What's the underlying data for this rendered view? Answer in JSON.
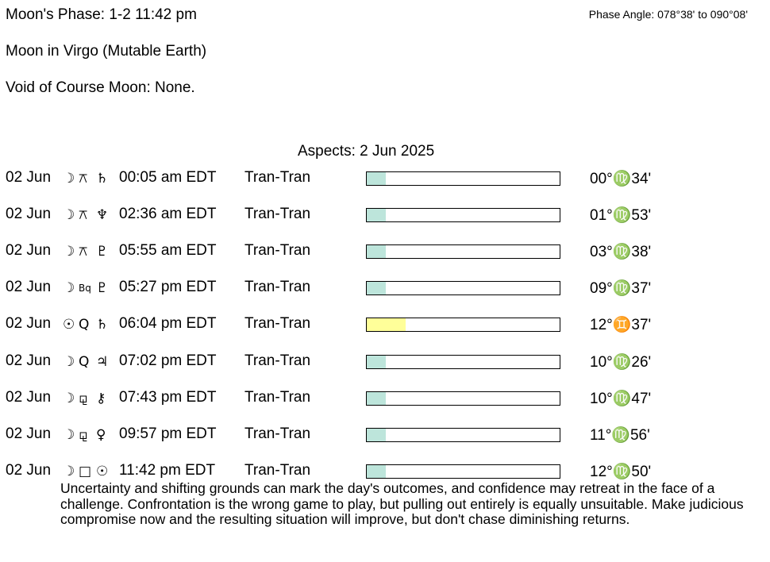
{
  "header": {
    "moon_phase": "Moon's Phase:  1-2 11:42 pm",
    "phase_angle": "Phase Angle:  078°38' to 090°08'",
    "moon_sign": "Moon in Virgo   (Mutable Earth)",
    "void_of_course": "Void of Course Moon: None."
  },
  "aspects_title": "Aspects: 2 Jun 2025",
  "bar_colors": {
    "teal": "#bde5db",
    "yellow": "#ffff99"
  },
  "aspects": [
    {
      "date": "02 Jun",
      "p1": "☽",
      "aspect": "⚻",
      "p2": "♄",
      "time": "00:05 am EDT",
      "type": "Tran-Tran",
      "strength": 0.1,
      "color": "teal",
      "position": "00°♍34'"
    },
    {
      "date": "02 Jun",
      "p1": "☽",
      "aspect": "⚻",
      "p2": "♆",
      "time": "02:36 am EDT",
      "type": "Tran-Tran",
      "strength": 0.1,
      "color": "teal",
      "position": "01°♍53'"
    },
    {
      "date": "02 Jun",
      "p1": "☽",
      "aspect": "⚻",
      "p2": "♇",
      "time": "05:55 am EDT",
      "type": "Tran-Tran",
      "strength": 0.1,
      "color": "teal",
      "position": "03°♍38'"
    },
    {
      "date": "02 Jun",
      "p1": "☽",
      "aspect": "Bq",
      "p2": "♇",
      "time": "05:27 pm EDT",
      "type": "Tran-Tran",
      "strength": 0.1,
      "color": "teal",
      "position": "09°♍37'"
    },
    {
      "date": "02 Jun",
      "p1": "☉",
      "aspect": "Q",
      "p2": "♄",
      "time": "06:04 pm EDT",
      "type": "Tran-Tran",
      "strength": 0.2,
      "color": "yellow",
      "position": "12°♊37'"
    },
    {
      "date": "02 Jun",
      "p1": "☽",
      "aspect": "Q",
      "p2": "♃",
      "time": "07:02 pm EDT",
      "type": "Tran-Tran",
      "strength": 0.1,
      "color": "teal",
      "position": "10°♍26'"
    },
    {
      "date": "02 Jun",
      "p1": "☽",
      "aspect": "⚼",
      "p2": "⚷",
      "time": "07:43 pm EDT",
      "type": "Tran-Tran",
      "strength": 0.1,
      "color": "teal",
      "position": "10°♍47'"
    },
    {
      "date": "02 Jun",
      "p1": "☽",
      "aspect": "⚼",
      "p2": "♀",
      "time": "09:57 pm EDT",
      "type": "Tran-Tran",
      "strength": 0.1,
      "color": "teal",
      "position": "11°♍56'"
    },
    {
      "date": "02 Jun",
      "p1": "☽",
      "aspect": "□",
      "p2": "☉",
      "time": "11:42 pm EDT",
      "type": "Tran-Tran",
      "strength": 0.1,
      "color": "teal",
      "position": "12°♍50'"
    }
  ],
  "interpretation": "Uncertainty and shifting grounds can mark the day's outcomes, and confidence may retreat in the face of a challenge. Confrontation is the wrong game to play, but pulling out entirely is equally unsuitable. Make judicious compromise now and the resulting situation will improve, but don't chase diminishing returns."
}
